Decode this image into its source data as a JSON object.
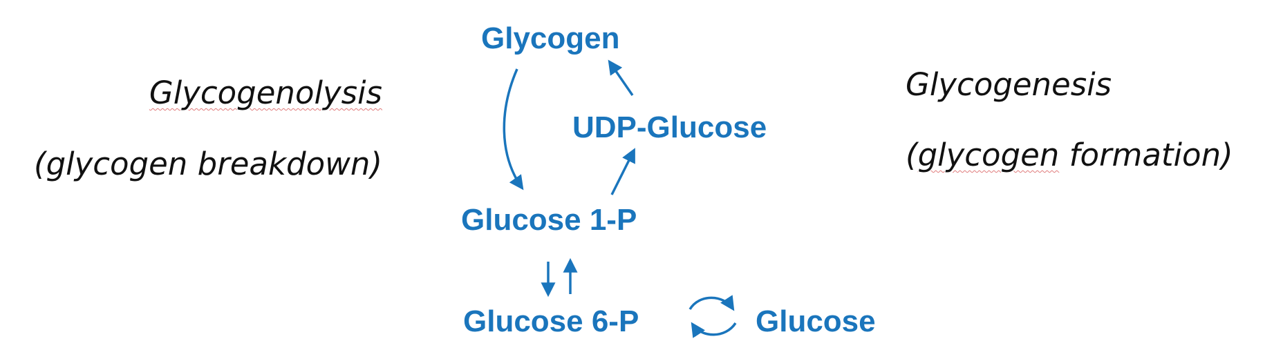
{
  "left": {
    "title": "Glycogenolysis",
    "subtitle": "(glycogen breakdown)"
  },
  "right": {
    "title": "Glycogenesis",
    "subtitle_open": "(",
    "subtitle_glycogen": "glycogen",
    "subtitle_rest": " formation)"
  },
  "nodes": {
    "glycogen": "Glycogen",
    "udp_glucose": "UDP-Glucose",
    "glucose_1p": "Glucose 1-P",
    "glucose_6p": "Glucose 6-P",
    "glucose": "Glucose"
  },
  "colors": {
    "node_text": "#1a75bc",
    "arrow": "#1a75bc",
    "side_text": "#111111"
  }
}
